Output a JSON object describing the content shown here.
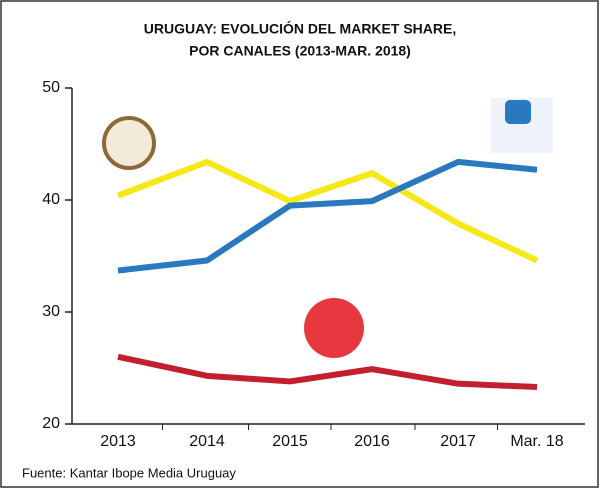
{
  "chart_data": {
    "type": "line",
    "title": [
      "URUGUAY: EVOLUCIÓN DEL MARKET SHARE,",
      "POR CANALES (2013-MAR. 2018)"
    ],
    "categories": [
      "2013",
      "2014",
      "2015",
      "2016",
      "2017",
      "Mar. 18"
    ],
    "series": [
      {
        "color": "#f5e816",
        "values": [
          40.4,
          43.4,
          39.9,
          42.4,
          37.9,
          34.6
        ]
      },
      {
        "color": "#2a79bf",
        "values": [
          33.7,
          34.6,
          39.5,
          39.9,
          43.4,
          42.7
        ]
      },
      {
        "color": "#c21f31",
        "values": [
          26.0,
          24.3,
          23.8,
          24.9,
          23.6,
          23.3
        ]
      }
    ],
    "ylim": [
      20,
      50
    ],
    "yticks": [
      20,
      30,
      40,
      50
    ],
    "source": "Fuente: Kantar Ibope Media Uruguay"
  }
}
